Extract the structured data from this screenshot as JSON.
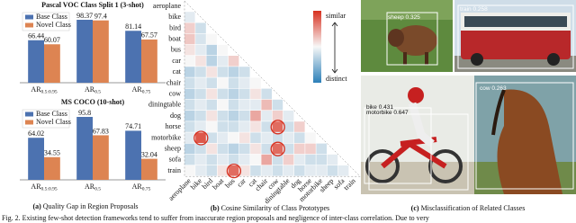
{
  "chart_data": [
    {
      "type": "bar",
      "title": "Pascal VOC Class Split 1 (3-shot)",
      "categories": [
        [
          "AR",
          "0.5:0.95"
        ],
        [
          "AR",
          "0.5"
        ],
        [
          "AR",
          "0.75"
        ]
      ],
      "series": [
        {
          "name": "Base Class",
          "color": "#4c72b0",
          "values": [
            66.44,
            98.37,
            81.14
          ]
        },
        {
          "name": "Novel Class",
          "color": "#dd8452",
          "values": [
            60.07,
            97.4,
            67.57
          ]
        }
      ],
      "legend": "upper left"
    },
    {
      "type": "bar",
      "title": "MS COCO (10-shot)",
      "categories": [
        [
          "AR",
          "0.5:0.95"
        ],
        [
          "AR",
          "0.5"
        ],
        [
          "AR",
          "0.75"
        ]
      ],
      "series": [
        {
          "name": "Base Class",
          "color": "#4c72b0",
          "values": [
            64.02,
            95.8,
            74.71
          ]
        },
        {
          "name": "Novel Class",
          "color": "#dd8452",
          "values": [
            34.55,
            67.83,
            32.04
          ]
        }
      ],
      "legend": "upper left"
    },
    {
      "type": "heatmap",
      "labels": [
        "aeroplane",
        "bike",
        "bird",
        "boat",
        "bus",
        "car",
        "cat",
        "chair",
        "cow",
        "diningtable",
        "dog",
        "horse",
        "motorbike",
        "sheep",
        "sofa",
        "train"
      ],
      "values": [
        [],
        [
          0.45
        ],
        [
          0.6,
          0.4
        ],
        [
          0.62,
          0.42,
          0.5
        ],
        [
          0.55,
          0.45,
          0.35,
          0.5
        ],
        [
          0.5,
          0.55,
          0.35,
          0.45,
          0.6
        ],
        [
          0.35,
          0.4,
          0.55,
          0.4,
          0.35,
          0.4
        ],
        [
          0.4,
          0.45,
          0.4,
          0.5,
          0.4,
          0.45,
          0.5
        ],
        [
          0.35,
          0.4,
          0.55,
          0.4,
          0.35,
          0.4,
          0.55,
          0.4
        ],
        [
          0.4,
          0.45,
          0.4,
          0.5,
          0.4,
          0.45,
          0.45,
          0.65,
          0.4
        ],
        [
          0.35,
          0.4,
          0.55,
          0.4,
          0.35,
          0.4,
          0.7,
          0.45,
          0.6,
          0.45
        ],
        [
          0.4,
          0.45,
          0.5,
          0.4,
          0.4,
          0.45,
          0.55,
          0.4,
          0.85,
          0.4,
          0.6
        ],
        [
          0.45,
          0.9,
          0.4,
          0.45,
          0.5,
          0.55,
          0.4,
          0.45,
          0.4,
          0.45,
          0.4,
          0.5
        ],
        [
          0.35,
          0.4,
          0.55,
          0.4,
          0.35,
          0.4,
          0.55,
          0.4,
          0.85,
          0.4,
          0.6,
          0.6,
          0.4
        ],
        [
          0.4,
          0.45,
          0.4,
          0.45,
          0.4,
          0.45,
          0.5,
          0.7,
          0.4,
          0.6,
          0.45,
          0.4,
          0.4,
          0.45
        ],
        [
          0.5,
          0.45,
          0.4,
          0.55,
          0.85,
          0.55,
          0.4,
          0.45,
          0.4,
          0.45,
          0.4,
          0.45,
          0.45,
          0.4,
          0.45
        ]
      ],
      "zlim": [
        0,
        1
      ],
      "colorbar_labels": [
        "similar",
        "distinct"
      ]
    }
  ],
  "detections": [
    {
      "label": "sheep",
      "score": 0.325
    },
    {
      "label": "train",
      "score": 0.258
    },
    {
      "label": "bike",
      "score": 0.431
    },
    {
      "label": "motorbike",
      "score": 0.647
    },
    {
      "label": "cow",
      "score": 0.263
    }
  ],
  "panel_captions": [
    {
      "tag": "(a)",
      "text": "Quality Gap in Region Proposals"
    },
    {
      "tag": "(b)",
      "text": "Cosine Similarity of Class Prototypes"
    },
    {
      "tag": "(c)",
      "text": "Misclassification of Related Classes"
    }
  ],
  "figure_caption": "Fig. 2. Existing few-shot detection frameworks tend to suffer from inaccurate region proposals and negligence of inter-class correlation. Due to very"
}
